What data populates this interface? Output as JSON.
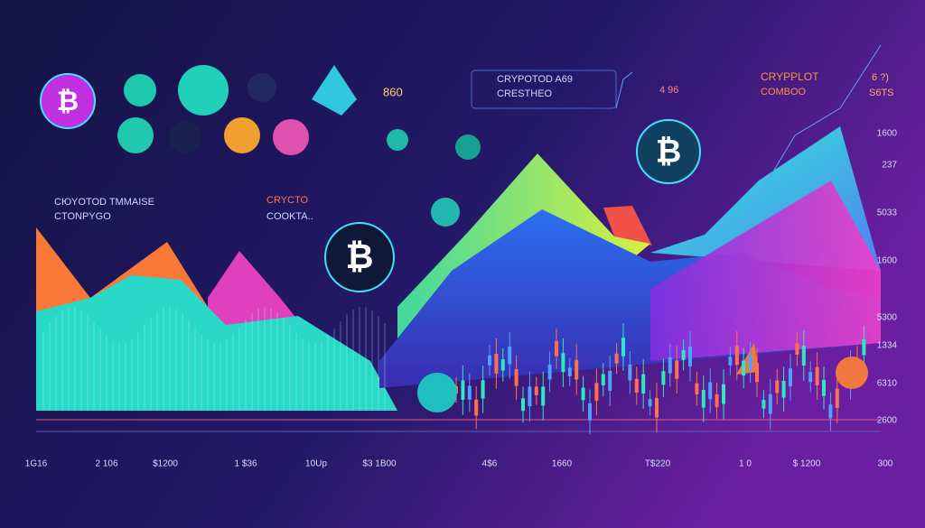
{
  "header": {
    "title": "CRYPOTOD A69",
    "subtitle": "CRESTHEO",
    "badge": "860"
  },
  "top_right": {
    "title": "CRYPPLOT",
    "subtitle": "COMBOO",
    "note": "4 96",
    "code": "6 ?)",
    "tag": "S6TS"
  },
  "left_panel": {
    "title": "CЮYOTOD TMMAISE",
    "subtitle": "CTONPYGO"
  },
  "center_panel": {
    "title": "CRYCTO",
    "subtitle": "COOKTA.."
  },
  "coin_symbol": "₿",
  "right_axis": [
    "1600",
    "237",
    "5033",
    "1600",
    "5300",
    "1334",
    "6310",
    "2600"
  ],
  "bottom_axis": [
    "1G16",
    "2 106",
    "$1200",
    "1 $36",
    "10Up",
    "$3 1B00",
    "4$6",
    "1660",
    "T$220",
    "1 0",
    "$ 1200",
    "300"
  ]
}
